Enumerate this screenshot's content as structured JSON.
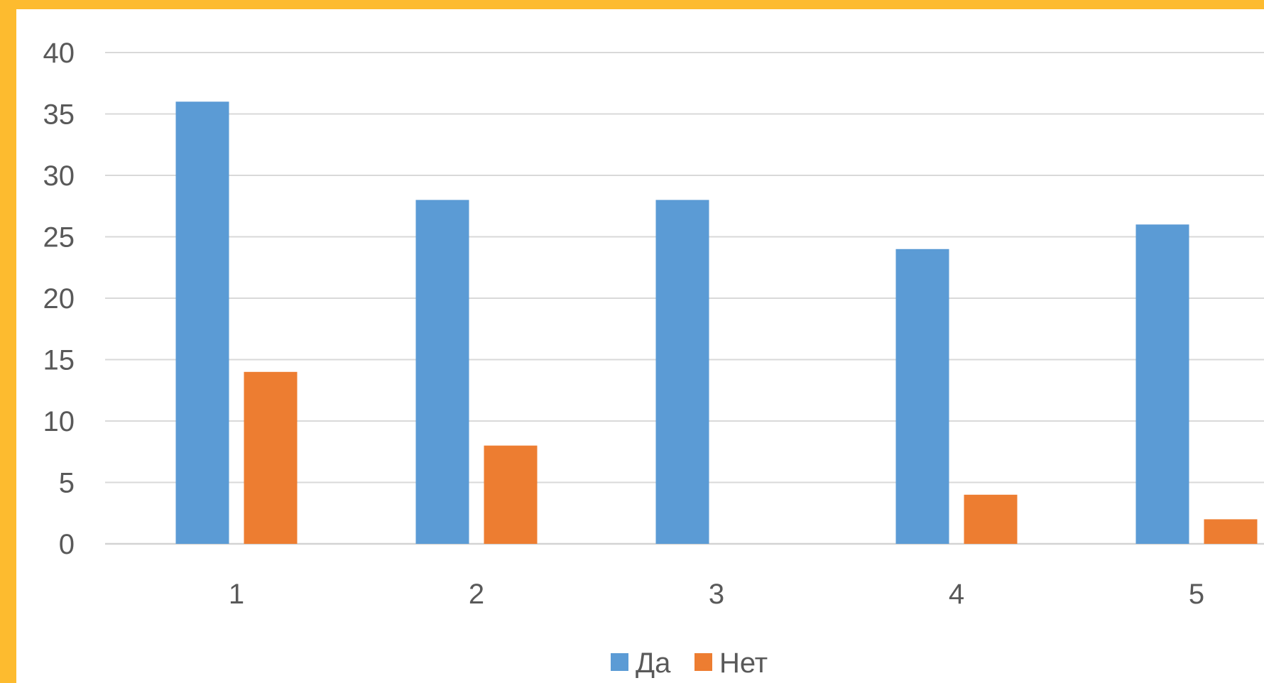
{
  "chart_data": {
    "type": "bar",
    "title": "",
    "xlabel": "",
    "ylabel": "",
    "categories": [
      "1",
      "2",
      "3",
      "4",
      "5"
    ],
    "series": [
      {
        "name": "Да",
        "values": [
          36,
          28,
          28,
          24,
          26
        ],
        "color": "#5B9BD5"
      },
      {
        "name": "Нет",
        "values": [
          14,
          8,
          0,
          4,
          2
        ],
        "color": "#ED7D31"
      }
    ],
    "ylim": [
      0,
      40
    ],
    "yticks": [
      "0",
      "5",
      "10",
      "15",
      "20",
      "25",
      "30",
      "35",
      "40"
    ],
    "grid": true,
    "legend_position": "bottom"
  },
  "colors": {
    "frame": "#FDBB2F",
    "background": "#FFFFFF",
    "gridline": "#D9D9D9",
    "text": "#595959"
  }
}
